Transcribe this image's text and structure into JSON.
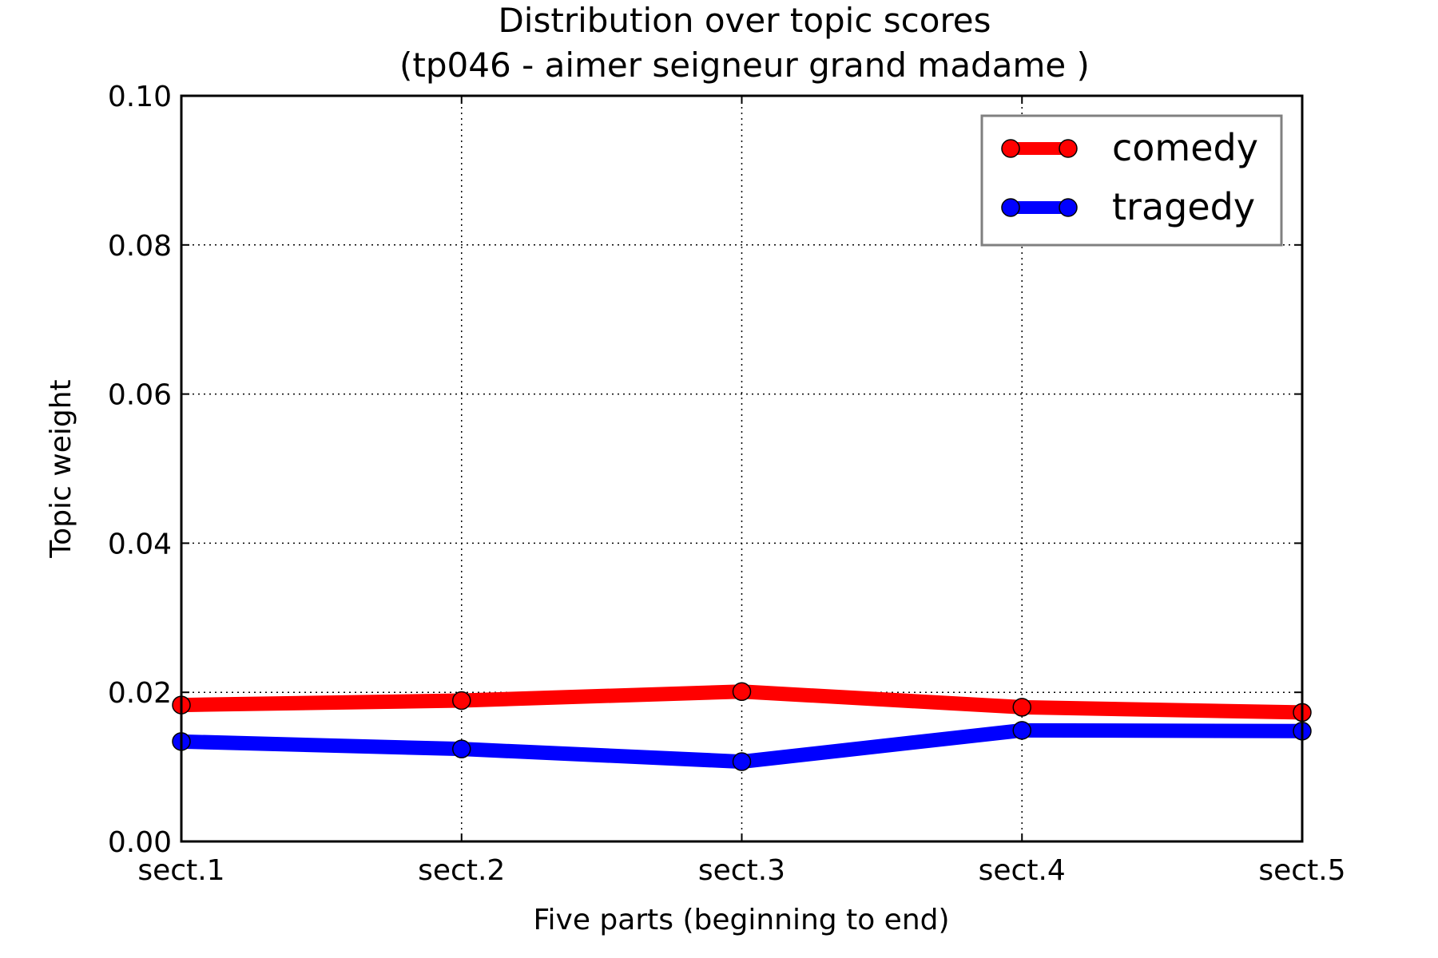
{
  "chart_data": {
    "type": "line",
    "title": "Distribution over topic scores",
    "subtitle": "(tp046 - aimer seigneur grand madame )",
    "xlabel": "Five parts (beginning to end)",
    "ylabel": "Topic weight",
    "categories": [
      "sect.1",
      "sect.2",
      "sect.3",
      "sect.4",
      "sect.5"
    ],
    "ylim": [
      0,
      0.1
    ],
    "yticks": [
      "0.00",
      "0.02",
      "0.04",
      "0.06",
      "0.08",
      "0.10"
    ],
    "grid": true,
    "legend_position": "top-right",
    "series": [
      {
        "name": "comedy",
        "color": "#ff0000",
        "values": [
          0.0183,
          0.0189,
          0.0201,
          0.018,
          0.0173
        ]
      },
      {
        "name": "tragedy",
        "color": "#0000ff",
        "values": [
          0.0134,
          0.0124,
          0.0107,
          0.0149,
          0.0148
        ]
      }
    ]
  }
}
